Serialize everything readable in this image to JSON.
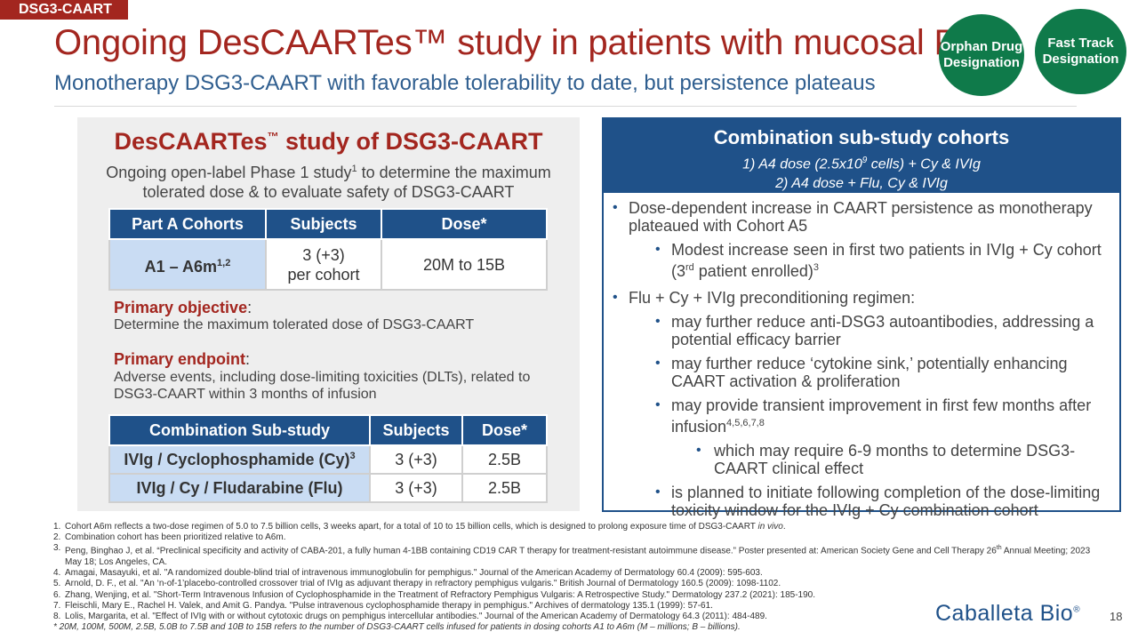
{
  "header": {
    "tag": "DSG3-CAART",
    "title": "Ongoing DesCAARTes™ study in patients with mucosal PV",
    "subtitle": "Monotherapy DSG3-CAART with favorable tolerability to date, but persistence plateaus"
  },
  "badges": {
    "orphan": "Orphan Drug Designation",
    "fast_track": "Fast Track Designation"
  },
  "colors": {
    "brand_red": "#a3261f",
    "brand_blue": "#1f5189",
    "badge_green": "#0f7a4a",
    "cell_blue": "#c9dcf3"
  },
  "left_panel": {
    "title_pre": "DesCAARTes",
    "title_tm": "™",
    "title_post": " study of DSG3-CAART",
    "desc_pre": "Ongoing open-label Phase 1 study",
    "desc_sup": "1",
    "desc_post": " to determine the maximum tolerated dose & to evaluate safety of DSG3-CAART",
    "table1": {
      "headers": [
        "Part A Cohorts",
        "Subjects",
        "Dose*"
      ],
      "row": {
        "cohort": "A1 – A6m",
        "cohort_sup": "1,2",
        "subjects_line1": "3 (+3)",
        "subjects_line2": "per cohort",
        "dose": "20M to 15B"
      }
    },
    "primary_objective_label": "Primary objective",
    "primary_objective_text": "Determine the maximum tolerated dose of DSG3-CAART",
    "primary_endpoint_label": "Primary endpoint",
    "primary_endpoint_text": "Adverse events, including dose-limiting toxicities (DLTs), related to DSG3-CAART within 3 months of infusion",
    "colon": ":",
    "table2": {
      "headers": [
        "Combination Sub-study",
        "Subjects",
        "Dose*"
      ],
      "rows": [
        {
          "name": "IVIg / Cyclophosphamide (Cy)",
          "sup": "3",
          "subjects": "3 (+3)",
          "dose": "2.5B"
        },
        {
          "name": "IVIg / Cy / Fludarabine (Flu)",
          "sup": "",
          "subjects": "3 (+3)",
          "dose": "2.5B"
        }
      ]
    }
  },
  "right_panel": {
    "heading": "Combination sub-study cohorts",
    "cohort1_pre": "1)  A4 dose (2.5x10",
    "cohort1_sup": "9",
    "cohort1_post": " cells) + Cy & IVIg",
    "cohort2": "2)  A4 dose + Flu, Cy & IVIg",
    "bullet_glyph": "•",
    "b1": "Dose-dependent increase in CAART persistence as monotherapy plateaued with Cohort A5",
    "b1a_pre": "Modest increase seen in first two patients in IVIg + Cy cohort (3",
    "b1a_sup1": "rd",
    "b1a_mid": " patient enrolled)",
    "b1a_sup2": "3",
    "b2": "Flu + Cy + IVIg preconditioning regimen:",
    "b2a": "may further reduce anti-DSG3 autoantibodies, addressing a potential efficacy barrier",
    "b2b": "may further reduce ‘cytokine sink,’ potentially enhancing CAART activation & proliferation",
    "b2c_pre": "may provide transient improvement in first few months after infusion",
    "b2c_sup": "4,5,6,7,8",
    "b2c1": "which may require 6-9 months to determine DSG3-CAART clinical effect",
    "b2d": "is planned to initiate following completion of the dose-limiting toxicity window for the IVIg + Cy combination cohort"
  },
  "footnotes": {
    "n1_num": "1.",
    "n1_pre": "Cohort A6m reflects a two-dose regimen of 5.0 to 7.5 billion cells, 3 weeks apart, for a total of 10 to 15 billion cells, which is designed to prolong exposure time of DSG3-CAART ",
    "n1_ital": "in vivo",
    "n1_end": ".",
    "n2_num": "2.",
    "n2": "Combination cohort has been prioritized relative to A6m.",
    "n3_num": "3.",
    "n3_pre": "Peng, Binghao J, et al. “Preclinical specificity and activity of CABA-201, a fully human 4-1BB containing CD19 CAR T therapy for treatment-resistant autoimmune disease.” Poster presented at: American Society Gene and Cell Therapy 26",
    "n3_sup": "th",
    "n3_post": " Annual Meeting; 2023 May 18; Los Angeles, CA.",
    "n4_num": "4.",
    "n4": "Amagai, Masayuki, et al. \"A randomized double-blind trial of intravenous immunoglobulin for pemphigus.\" Journal of the American Academy of Dermatology 60.4 (2009): 595-603.",
    "n5_num": "5.",
    "n5": "Arnold, D. F., et al. \"An ‘n-of-1’placebo-controlled crossover trial of IVIg as adjuvant therapy in refractory pemphigus vulgaris.\" British Journal of Dermatology 160.5 (2009): 1098-1102.",
    "n6_num": "6.",
    "n6": "Zhang, Wenjing, et al. \"Short-Term Intravenous Infusion of Cyclophosphamide in the Treatment of Refractory Pemphigus Vulgaris: A Retrospective Study.\" Dermatology 237.2 (2021): 185-190.",
    "n7_num": "7.",
    "n7": "Fleischli, Mary E., Rachel H. Valek, and Amit G. Pandya. \"Pulse intravenous cyclophosphamide therapy in pemphigus.\" Archives of dermatology 135.1 (1999): 57-61.",
    "n8_num": "8.",
    "n8": "Lolis, Margarita, et al. \"Effect of IVIg with or without cytotoxic drugs on pemphigus intercellular antibodies.\" Journal of the American Academy of Dermatology 64.3 (2011): 484-489.",
    "asterisk": "* 20M, 100M, 500M, 2.5B, 5.0B to 7.5B and 10B to 15B refers to the number of DSG3-CAART cells infused for patients in dosing cohorts A1 to A6m (M – millions; B – billions)."
  },
  "logo": {
    "text": "Caballeta Bio",
    "mark": "®"
  },
  "page_number": "18"
}
